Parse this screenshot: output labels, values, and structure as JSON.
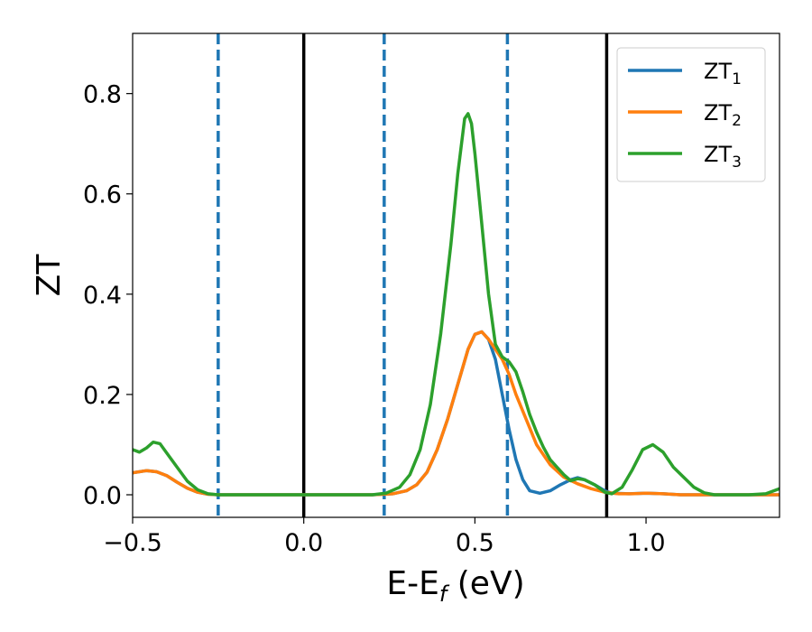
{
  "chart_data": {
    "type": "line",
    "xlabel": {
      "main": "E-E",
      "sub": "f",
      "rest": " (eV)"
    },
    "ylabel": "ZT",
    "xlim": [
      -0.5,
      1.39
    ],
    "ylim": [
      -0.045,
      0.92
    ],
    "xticks": [
      {
        "value": -0.5,
        "label": "−0.5"
      },
      {
        "value": 0.0,
        "label": "0.0"
      },
      {
        "value": 0.5,
        "label": "0.5"
      },
      {
        "value": 1.0,
        "label": "1.0"
      }
    ],
    "yticks": [
      {
        "value": 0.0,
        "label": "0.0"
      },
      {
        "value": 0.2,
        "label": "0.2"
      },
      {
        "value": 0.4,
        "label": "0.4"
      },
      {
        "value": 0.6,
        "label": "0.6"
      },
      {
        "value": 0.8,
        "label": "0.8"
      }
    ],
    "grid": false,
    "legend_position": "top-right",
    "vlines": [
      {
        "x": -0.25,
        "style": "dashed",
        "color": "#1f77b4"
      },
      {
        "x": 0.0,
        "style": "solid",
        "color": "#000000"
      },
      {
        "x": 0.235,
        "style": "dashed",
        "color": "#1f77b4"
      },
      {
        "x": 0.595,
        "style": "dashed",
        "color": "#1f77b4"
      },
      {
        "x": 0.885,
        "style": "solid",
        "color": "#000000"
      }
    ],
    "series": [
      {
        "name": "ZT1",
        "legend_main": "ZT",
        "legend_sub": "1",
        "color": "#1f77b4",
        "points": [
          [
            -0.5,
            0.044
          ],
          [
            -0.46,
            0.048
          ],
          [
            -0.43,
            0.046
          ],
          [
            -0.4,
            0.038
          ],
          [
            -0.37,
            0.025
          ],
          [
            -0.34,
            0.013
          ],
          [
            -0.31,
            0.005
          ],
          [
            -0.28,
            0.001
          ],
          [
            -0.25,
            0.0
          ],
          [
            0.0,
            0.0
          ],
          [
            0.2,
            0.0
          ],
          [
            0.26,
            0.002
          ],
          [
            0.3,
            0.008
          ],
          [
            0.33,
            0.02
          ],
          [
            0.36,
            0.045
          ],
          [
            0.39,
            0.09
          ],
          [
            0.42,
            0.15
          ],
          [
            0.45,
            0.22
          ],
          [
            0.48,
            0.29
          ],
          [
            0.5,
            0.32
          ],
          [
            0.52,
            0.325
          ],
          [
            0.54,
            0.31
          ],
          [
            0.56,
            0.27
          ],
          [
            0.58,
            0.2
          ],
          [
            0.6,
            0.13
          ],
          [
            0.62,
            0.07
          ],
          [
            0.64,
            0.03
          ],
          [
            0.66,
            0.008
          ],
          [
            0.69,
            0.003
          ],
          [
            0.72,
            0.008
          ],
          [
            0.75,
            0.02
          ],
          [
            0.78,
            0.03
          ],
          [
            0.8,
            0.034
          ],
          [
            0.82,
            0.03
          ],
          [
            0.85,
            0.02
          ],
          [
            0.88,
            0.008
          ],
          [
            0.9,
            0.003
          ],
          [
            0.95,
            0.002
          ],
          [
            1.0,
            0.003
          ],
          [
            1.05,
            0.002
          ],
          [
            1.1,
            0.0
          ],
          [
            1.39,
            0.0
          ]
        ]
      },
      {
        "name": "ZT2",
        "legend_main": "ZT",
        "legend_sub": "2",
        "color": "#ff7f0e",
        "points": [
          [
            -0.5,
            0.044
          ],
          [
            -0.46,
            0.048
          ],
          [
            -0.43,
            0.046
          ],
          [
            -0.4,
            0.038
          ],
          [
            -0.37,
            0.025
          ],
          [
            -0.34,
            0.013
          ],
          [
            -0.31,
            0.005
          ],
          [
            -0.28,
            0.001
          ],
          [
            -0.25,
            0.0
          ],
          [
            0.0,
            0.0
          ],
          [
            0.2,
            0.0
          ],
          [
            0.26,
            0.002
          ],
          [
            0.3,
            0.008
          ],
          [
            0.33,
            0.02
          ],
          [
            0.36,
            0.045
          ],
          [
            0.39,
            0.09
          ],
          [
            0.42,
            0.15
          ],
          [
            0.45,
            0.22
          ],
          [
            0.48,
            0.29
          ],
          [
            0.5,
            0.32
          ],
          [
            0.52,
            0.325
          ],
          [
            0.54,
            0.31
          ],
          [
            0.56,
            0.29
          ],
          [
            0.58,
            0.27
          ],
          [
            0.6,
            0.24
          ],
          [
            0.62,
            0.2
          ],
          [
            0.65,
            0.15
          ],
          [
            0.68,
            0.1
          ],
          [
            0.72,
            0.06
          ],
          [
            0.76,
            0.035
          ],
          [
            0.8,
            0.022
          ],
          [
            0.84,
            0.012
          ],
          [
            0.88,
            0.005
          ],
          [
            0.92,
            0.002
          ],
          [
            0.96,
            0.002
          ],
          [
            1.0,
            0.003
          ],
          [
            1.05,
            0.002
          ],
          [
            1.1,
            0.0
          ],
          [
            1.39,
            0.0
          ]
        ]
      },
      {
        "name": "ZT3",
        "legend_main": "ZT",
        "legend_sub": "3",
        "color": "#2ca02c",
        "points": [
          [
            -0.5,
            0.09
          ],
          [
            -0.48,
            0.085
          ],
          [
            -0.46,
            0.093
          ],
          [
            -0.44,
            0.105
          ],
          [
            -0.42,
            0.102
          ],
          [
            -0.4,
            0.083
          ],
          [
            -0.37,
            0.055
          ],
          [
            -0.34,
            0.027
          ],
          [
            -0.31,
            0.01
          ],
          [
            -0.28,
            0.002
          ],
          [
            -0.25,
            0.0
          ],
          [
            0.0,
            0.0
          ],
          [
            0.2,
            0.0
          ],
          [
            0.24,
            0.003
          ],
          [
            0.28,
            0.015
          ],
          [
            0.31,
            0.04
          ],
          [
            0.34,
            0.09
          ],
          [
            0.37,
            0.18
          ],
          [
            0.4,
            0.32
          ],
          [
            0.43,
            0.5
          ],
          [
            0.45,
            0.64
          ],
          [
            0.47,
            0.75
          ],
          [
            0.48,
            0.76
          ],
          [
            0.49,
            0.74
          ],
          [
            0.5,
            0.68
          ],
          [
            0.52,
            0.54
          ],
          [
            0.54,
            0.4
          ],
          [
            0.56,
            0.3
          ],
          [
            0.58,
            0.275
          ],
          [
            0.6,
            0.265
          ],
          [
            0.62,
            0.245
          ],
          [
            0.64,
            0.205
          ],
          [
            0.66,
            0.16
          ],
          [
            0.68,
            0.125
          ],
          [
            0.7,
            0.095
          ],
          [
            0.72,
            0.07
          ],
          [
            0.74,
            0.055
          ],
          [
            0.76,
            0.04
          ],
          [
            0.78,
            0.028
          ],
          [
            0.8,
            0.032
          ],
          [
            0.82,
            0.03
          ],
          [
            0.85,
            0.02
          ],
          [
            0.88,
            0.005
          ],
          [
            0.9,
            0.002
          ],
          [
            0.93,
            0.015
          ],
          [
            0.96,
            0.05
          ],
          [
            0.99,
            0.09
          ],
          [
            1.02,
            0.1
          ],
          [
            1.05,
            0.085
          ],
          [
            1.08,
            0.055
          ],
          [
            1.11,
            0.035
          ],
          [
            1.14,
            0.015
          ],
          [
            1.17,
            0.004
          ],
          [
            1.2,
            0.0
          ],
          [
            1.3,
            0.0
          ],
          [
            1.35,
            0.002
          ],
          [
            1.39,
            0.012
          ]
        ]
      }
    ]
  }
}
